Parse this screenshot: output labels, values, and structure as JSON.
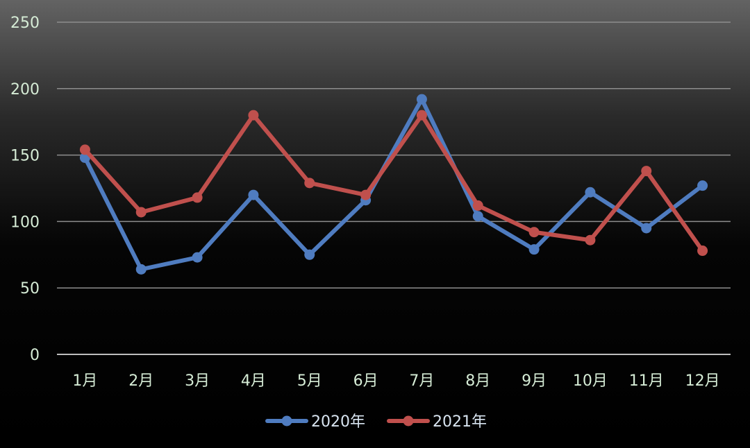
{
  "chart_data": {
    "type": "line",
    "categories": [
      "1月",
      "2月",
      "3月",
      "4月",
      "5月",
      "6月",
      "7月",
      "8月",
      "9月",
      "10月",
      "11月",
      "12月"
    ],
    "series": [
      {
        "name": "2020年",
        "color": "#4f7cc0",
        "values": [
          148,
          64,
          73,
          120,
          75,
          116,
          192,
          104,
          79,
          122,
          95,
          127
        ]
      },
      {
        "name": "2021年",
        "color": "#c0504d",
        "values": [
          154,
          107,
          118,
          180,
          129,
          120,
          180,
          112,
          92,
          86,
          138,
          78
        ]
      }
    ],
    "yticks": [
      "0",
      "50",
      "100",
      "150",
      "200",
      "250"
    ],
    "ylim": [
      0,
      250
    ],
    "grid": true,
    "legend_position": "bottom"
  }
}
